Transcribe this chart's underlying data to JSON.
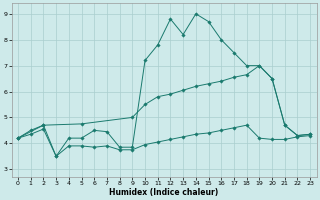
{
  "xlabel": "Humidex (Indice chaleur)",
  "background_color": "#ceeaea",
  "grid_color": "#aacece",
  "line_color": "#1a7a6e",
  "xlim": [
    -0.5,
    23.5
  ],
  "ylim": [
    2.7,
    9.4
  ],
  "yticks": [
    3,
    4,
    5,
    6,
    7,
    8,
    9
  ],
  "xticks": [
    0,
    1,
    2,
    3,
    4,
    5,
    6,
    7,
    8,
    9,
    10,
    11,
    12,
    13,
    14,
    15,
    16,
    17,
    18,
    19,
    20,
    21,
    22,
    23
  ],
  "series": {
    "main": {
      "x": [
        0,
        1,
        2,
        3,
        4,
        5,
        6,
        7,
        8,
        9,
        10,
        11,
        12,
        13,
        14,
        15,
        16,
        17,
        18,
        19,
        20,
        21,
        22,
        23
      ],
      "y": [
        4.2,
        4.5,
        4.7,
        3.5,
        4.2,
        4.2,
        4.5,
        4.45,
        3.85,
        3.85,
        7.2,
        7.8,
        8.8,
        8.2,
        9.0,
        8.7,
        8.0,
        7.5,
        7.0,
        7.0,
        6.5,
        4.7,
        4.3,
        4.35
      ]
    },
    "upper": {
      "x": [
        0,
        2,
        5,
        9,
        10,
        11,
        12,
        13,
        14,
        15,
        16,
        17,
        18,
        19,
        20,
        21,
        22,
        23
      ],
      "y": [
        4.2,
        4.7,
        4.75,
        5.0,
        5.5,
        5.8,
        5.9,
        6.05,
        6.2,
        6.3,
        6.4,
        6.55,
        6.65,
        7.0,
        6.5,
        4.7,
        4.3,
        4.35
      ]
    },
    "lower": {
      "x": [
        0,
        1,
        2,
        3,
        4,
        5,
        6,
        7,
        8,
        9,
        10,
        11,
        12,
        13,
        14,
        15,
        16,
        17,
        18,
        19,
        20,
        21,
        22,
        23
      ],
      "y": [
        4.2,
        4.35,
        4.55,
        3.5,
        3.9,
        3.9,
        3.85,
        3.9,
        3.75,
        3.75,
        3.95,
        4.05,
        4.15,
        4.25,
        4.35,
        4.4,
        4.5,
        4.6,
        4.7,
        4.2,
        4.15,
        4.15,
        4.25,
        4.3
      ]
    }
  }
}
